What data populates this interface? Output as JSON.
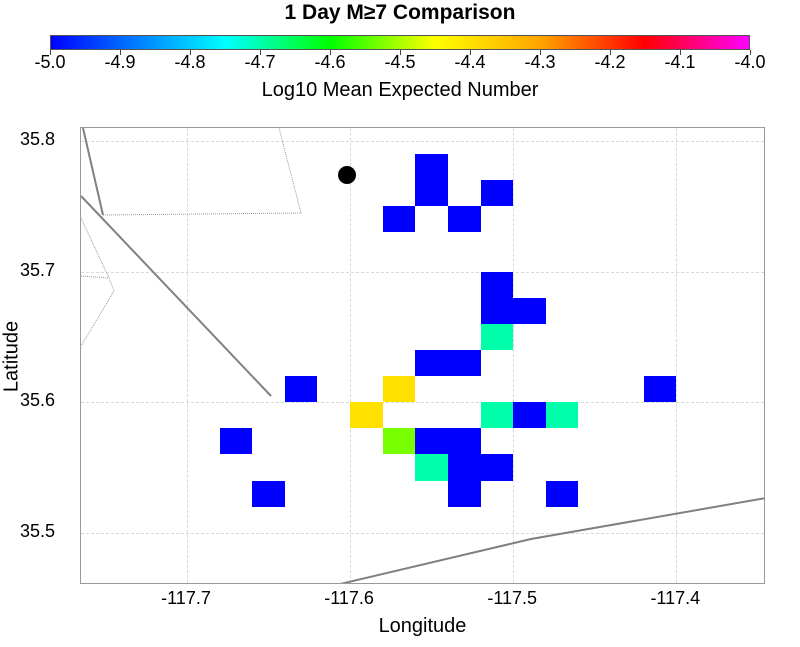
{
  "title": "1 Day M≥7 Comparison",
  "colorbar": {
    "label": "Log10 Mean Expected Number",
    "min": -5.0,
    "max": -4.0,
    "ticks": [
      "-5.0",
      "-4.9",
      "-4.8",
      "-4.7",
      "-4.6",
      "-4.5",
      "-4.4",
      "-4.3",
      "-4.2",
      "-4.1",
      "-4.0"
    ],
    "colormap": [
      "#0000ff",
      "#00ffff",
      "#00ff00",
      "#ffff00",
      "#ffa500",
      "#ff0000",
      "#ff00ff"
    ]
  },
  "axes": {
    "xlabel": "Longitude",
    "ylabel": "Latitude",
    "xlim": [
      -117.765,
      -117.345
    ],
    "ylim": [
      35.46,
      35.81
    ],
    "xticks": [
      "-117.7",
      "-117.6",
      "-117.5",
      "-117.4"
    ],
    "yticks": [
      "35.5",
      "35.6",
      "35.7",
      "35.8"
    ]
  },
  "chart_data": {
    "type": "heatmap",
    "cell_size_deg": 0.02,
    "cells": [
      {
        "lon": -117.55,
        "lat": 35.78,
        "value": -5.0
      },
      {
        "lon": -117.55,
        "lat": 35.76,
        "value": -5.0
      },
      {
        "lon": -117.51,
        "lat": 35.76,
        "value": -5.0
      },
      {
        "lon": -117.57,
        "lat": 35.74,
        "value": -5.0
      },
      {
        "lon": -117.53,
        "lat": 35.74,
        "value": -5.0
      },
      {
        "lon": -117.51,
        "lat": 35.69,
        "value": -5.0
      },
      {
        "lon": -117.51,
        "lat": 35.67,
        "value": -5.0
      },
      {
        "lon": -117.49,
        "lat": 35.67,
        "value": -5.0
      },
      {
        "lon": -117.51,
        "lat": 35.65,
        "value": -4.7
      },
      {
        "lon": -117.55,
        "lat": 35.63,
        "value": -5.0
      },
      {
        "lon": -117.53,
        "lat": 35.63,
        "value": -5.0
      },
      {
        "lon": -117.63,
        "lat": 35.61,
        "value": -5.0
      },
      {
        "lon": -117.57,
        "lat": 35.61,
        "value": -4.4
      },
      {
        "lon": -117.59,
        "lat": 35.59,
        "value": -4.4
      },
      {
        "lon": -117.51,
        "lat": 35.59,
        "value": -4.7
      },
      {
        "lon": -117.49,
        "lat": 35.59,
        "value": -5.0
      },
      {
        "lon": -117.47,
        "lat": 35.59,
        "value": -4.7
      },
      {
        "lon": -117.41,
        "lat": 35.61,
        "value": -5.0
      },
      {
        "lon": -117.67,
        "lat": 35.57,
        "value": -5.0
      },
      {
        "lon": -117.57,
        "lat": 35.57,
        "value": -4.53
      },
      {
        "lon": -117.55,
        "lat": 35.57,
        "value": -5.0
      },
      {
        "lon": -117.53,
        "lat": 35.57,
        "value": -5.0
      },
      {
        "lon": -117.55,
        "lat": 35.55,
        "value": -4.7
      },
      {
        "lon": -117.53,
        "lat": 35.55,
        "value": -5.0
      },
      {
        "lon": -117.51,
        "lat": 35.55,
        "value": -5.0
      },
      {
        "lon": -117.53,
        "lat": 35.53,
        "value": -5.0
      },
      {
        "lon": -117.47,
        "lat": 35.53,
        "value": -5.0
      },
      {
        "lon": -117.65,
        "lat": 35.53,
        "value": -5.0
      }
    ]
  }
}
